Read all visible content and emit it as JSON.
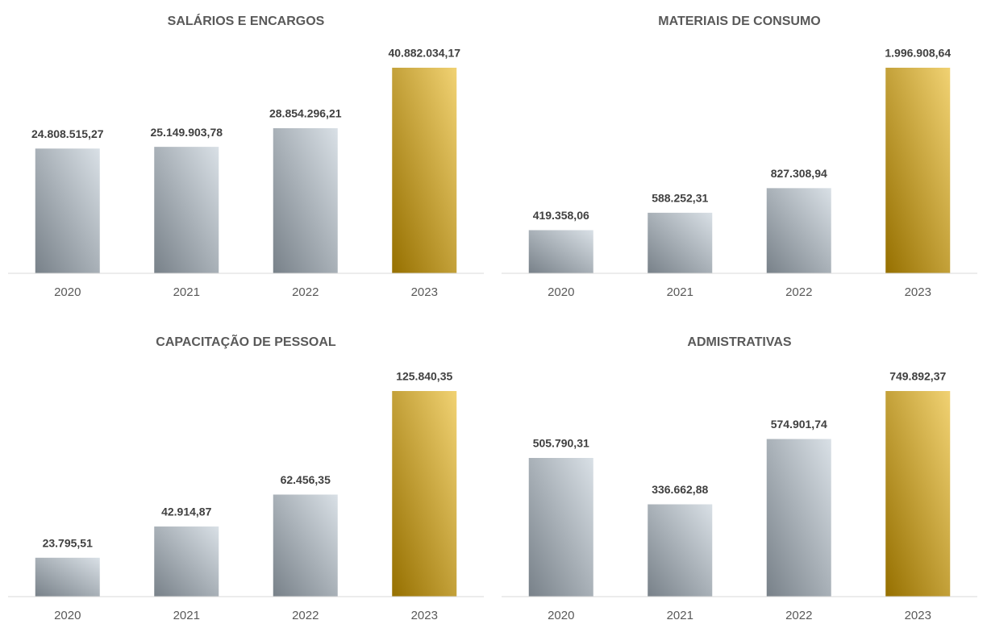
{
  "chart_data": [
    {
      "type": "bar",
      "title": "SALÁRIOS E ENCARGOS",
      "categories": [
        "2020",
        "2021",
        "2022",
        "2023"
      ],
      "values": [
        24808515.27,
        25149903.78,
        28854296.21,
        40882034.17
      ],
      "value_labels": [
        "24.808.515,27",
        "25.149.903,78",
        "28.854.296,21",
        "40.882.034,17"
      ],
      "colors": [
        "#b9c6d2",
        "#b9c6d2",
        "#b9c6d2",
        "#e6ad00"
      ]
    },
    {
      "type": "bar",
      "title": "MATERIAIS DE CONSUMO",
      "categories": [
        "2020",
        "2021",
        "2022",
        "2023"
      ],
      "values": [
        419358.06,
        588252.31,
        827308.94,
        1996908.64
      ],
      "value_labels": [
        "419.358,06",
        "588.252,31",
        "827.308,94",
        "1.996.908,64"
      ],
      "colors": [
        "#b9c6d2",
        "#b9c6d2",
        "#b9c6d2",
        "#e6ad00"
      ]
    },
    {
      "type": "bar",
      "title": "CAPACITAÇÃO DE PESSOAL",
      "categories": [
        "2020",
        "2021",
        "2022",
        "2023"
      ],
      "values": [
        23795.51,
        42914.87,
        62456.35,
        125840.35
      ],
      "value_labels": [
        "23.795,51",
        "42.914,87",
        "62.456,35",
        "125.840,35"
      ],
      "colors": [
        "#b9c6d2",
        "#b9c6d2",
        "#b9c6d2",
        "#e6ad00"
      ]
    },
    {
      "type": "bar",
      "title": "ADMISTRATIVAS",
      "categories": [
        "2020",
        "2021",
        "2022",
        "2023"
      ],
      "values": [
        505790.31,
        336662.88,
        574901.74,
        749892.37
      ],
      "value_labels": [
        "505.790,31",
        "336.662,88",
        "574.901,74",
        "749.892,37"
      ],
      "colors": [
        "#b9c6d2",
        "#b9c6d2",
        "#b9c6d2",
        "#e6ad00"
      ]
    }
  ]
}
